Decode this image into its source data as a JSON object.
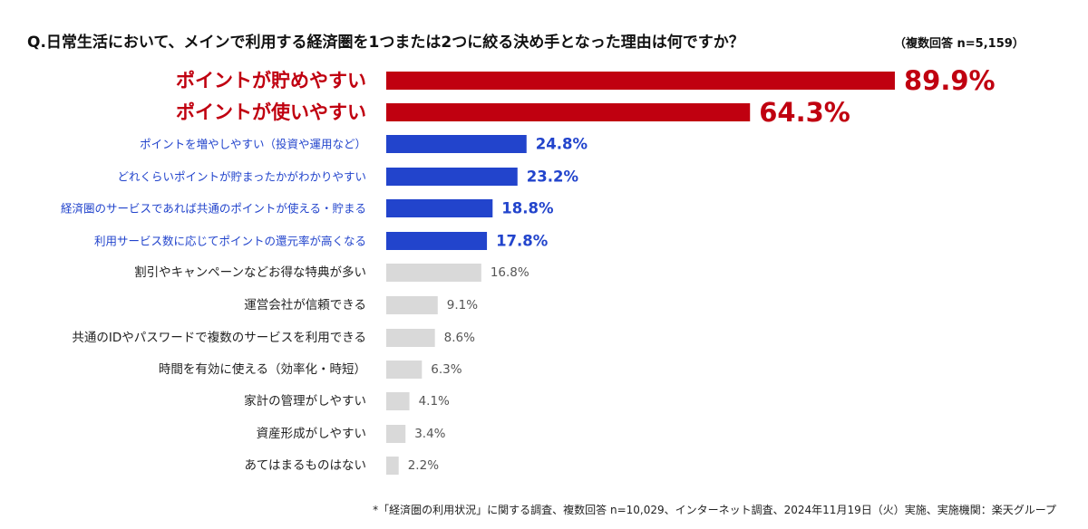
{
  "header": {
    "question": "Q.日常生活において、メインで利用する経済圏を1つまたは2つに絞る決め手となった理由は何ですか？",
    "note": "（複数回答 n=5,159）"
  },
  "footer": {
    "note": "*「経済圏の利用状況」に関する調査、複数回答 n=10,029、インターネット調査、2024年11月19日（火）実施、実施機関：楽天グループ"
  },
  "colors": {
    "top": "#c00010",
    "mid": "#2244cc",
    "low": "#d9d9d9",
    "low_text": "#222222",
    "low_value": "#555555"
  },
  "chart_data": {
    "type": "bar",
    "orientation": "horizontal",
    "title": "Q.日常生活において、メインで利用する経済圏を1つまたは2つに絞る決め手となった理由は何ですか？",
    "unit": "%",
    "xlim": [
      0,
      100
    ],
    "grid": false,
    "categories": [
      "ポイントが貯めやすい",
      "ポイントが使いやすい",
      "ポイントを増やしやすい（投資や運用など）",
      "どれくらいポイントが貯まったかがわかりやすい",
      "経済圏のサービスであれば共通のポイントが使える・貯まる",
      "利用サービス数に応じてポイントの還元率が高くなる",
      "割引やキャンペーンなどお得な特典が多い",
      "運営会社が信頼できる",
      "共通のIDやパスワードで複数のサービスを利用できる",
      "時間を有効に使える（効率化・時短）",
      "家計の管理がしやすい",
      "資産形成がしやすい",
      "あてはまるものはない"
    ],
    "values": [
      89.9,
      64.3,
      24.8,
      23.2,
      18.8,
      17.8,
      16.8,
      9.1,
      8.6,
      6.3,
      4.1,
      3.4,
      2.2
    ],
    "value_labels": [
      "89.9%",
      "64.3%",
      "24.8%",
      "23.2%",
      "18.8%",
      "17.8%",
      "16.8%",
      "9.1%",
      "8.6%",
      "6.3%",
      "4.1%",
      "3.4%",
      "2.2%"
    ],
    "groups": [
      "top",
      "top",
      "mid",
      "mid",
      "mid",
      "mid",
      "low",
      "low",
      "low",
      "low",
      "low",
      "low",
      "low"
    ]
  }
}
